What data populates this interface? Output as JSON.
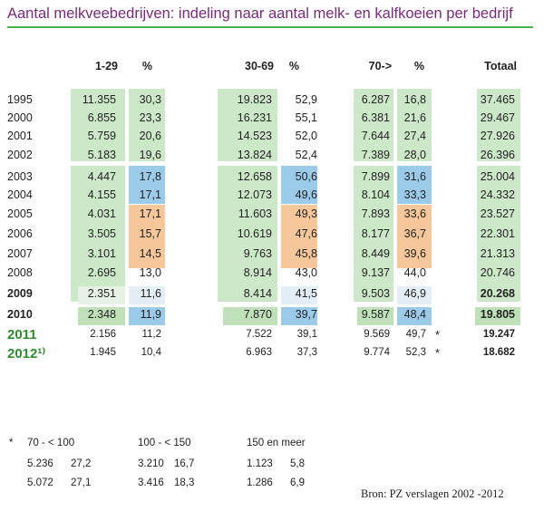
{
  "title": "Aantal melkveebedrijven: indeling naar aantal melk- en kalfkoeien per bedrijf",
  "headers": [
    "1-29",
    "%",
    "30-69",
    "%",
    "70->",
    "%",
    "Totaal"
  ],
  "rows": [
    {
      "year": "1995",
      "c": [
        "11.355",
        "30,3",
        "19.823",
        "52,9",
        "6.287",
        "16,8",
        "37.465"
      ],
      "star": ""
    },
    {
      "year": "2000",
      "c": [
        "6.855",
        "23,3",
        "16.231",
        "55,1",
        "6.381",
        "21,6",
        "29.467"
      ],
      "star": ""
    },
    {
      "year": "2001",
      "c": [
        "5.759",
        "20,6",
        "14.523",
        "52,0",
        "7.644",
        "27,4",
        "27.926"
      ],
      "star": ""
    },
    {
      "year": "2002",
      "c": [
        "5.183",
        "19,6",
        "13.824",
        "52,4",
        "7.389",
        "28,0",
        "26.396"
      ],
      "star": ""
    },
    {
      "year": "2003",
      "c": [
        "4.447",
        "17,8",
        "12.658",
        "50,6",
        "7.899",
        "31,6",
        "25.004"
      ],
      "star": ""
    },
    {
      "year": "2004",
      "c": [
        "4.155",
        "17,1",
        "12.073",
        "49,6",
        "8.104",
        "33,3",
        "24.332"
      ],
      "star": ""
    },
    {
      "year": "2005",
      "c": [
        "4.031",
        "17,1",
        "11.603",
        "49,3",
        "7.893",
        "33,6",
        "23.527"
      ],
      "star": ""
    },
    {
      "year": "2006",
      "c": [
        "3.505",
        "15,7",
        "10.619",
        "47,6",
        "8.177",
        "36,7",
        "22.301"
      ],
      "star": ""
    },
    {
      "year": "2007",
      "c": [
        "3.101",
        "14,5",
        "9.763",
        "45,8",
        "8.449",
        "39,6",
        "21.313"
      ],
      "star": ""
    },
    {
      "year": "2008",
      "c": [
        "2.695",
        "13,0",
        "8.914",
        "43,0",
        "9.137",
        "44,0",
        "20.746"
      ],
      "star": ""
    },
    {
      "year": "2009",
      "c": [
        "2.351",
        "11,6",
        "8.414",
        "41,5",
        "9.503",
        "46,9",
        "20.268"
      ],
      "star": ""
    },
    {
      "year": "2010",
      "c": [
        "2.348",
        "11,9",
        "7.870",
        "39,7",
        "9.587",
        "48,4",
        "19.805"
      ],
      "star": ""
    },
    {
      "year": "2011",
      "c": [
        "2.156",
        "11,2",
        "7.522",
        "39,1",
        "9.569",
        "49,7",
        "19.247"
      ],
      "star": "*"
    },
    {
      "year": "2012¹⁾",
      "c": [
        "1.945",
        "10,4",
        "6.963",
        "37,3",
        "9.774",
        "52,3",
        "18.682"
      ],
      "star": "*"
    }
  ],
  "footnote": {
    "star": "*",
    "groups": [
      {
        "label": "70 - < 100",
        "rows": [
          [
            "5.236",
            "27,2"
          ],
          [
            "5.072",
            "27,1"
          ]
        ]
      },
      {
        "label": "100 - < 150",
        "rows": [
          [
            "3.210",
            "16,7"
          ],
          [
            "3.416",
            "18,3"
          ]
        ]
      },
      {
        "label": "150 en meer",
        "rows": [
          [
            "1.123",
            "5,8"
          ],
          [
            "1.286",
            "6,9"
          ]
        ]
      }
    ]
  },
  "source": "Bron: PZ verslagen 2002  -2012",
  "colors": {
    "title": "#7a2a7a",
    "rule": "#49b049",
    "green_band": "#cde8c9",
    "blue_band": "#9ccbe9",
    "orange_band": "#f5c79a",
    "year_green": "#2e8b2e"
  }
}
